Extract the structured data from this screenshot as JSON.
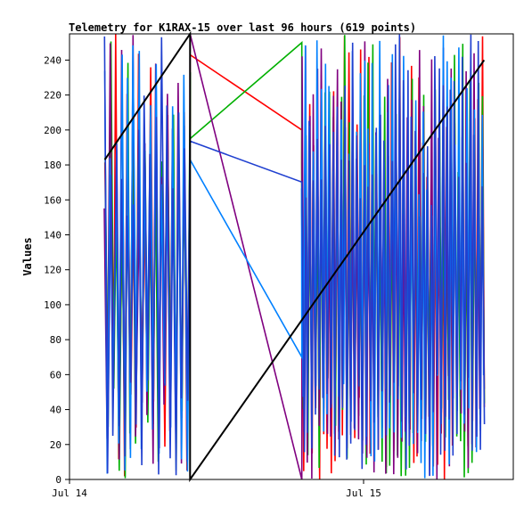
{
  "chart_data": {
    "type": "line",
    "title": "Telemetry for K1RAX-15 over last 96 hours (619 points)",
    "ylabel": "Values",
    "xlabel": "",
    "ylim": [
      0,
      255
    ],
    "yticks": [
      "0",
      "20",
      "40",
      "60",
      "80",
      "100",
      "120",
      "140",
      "160",
      "180",
      "200",
      "220",
      "240"
    ],
    "xlim_days": [
      0,
      1.5
    ],
    "xticks": [
      {
        "label": "Jul 14",
        "day": 0
      },
      {
        "label": "Jul 15",
        "day": 1
      }
    ],
    "grid": false,
    "legend": "none",
    "series": [
      {
        "color": "#ff0000",
        "style": "oscillating",
        "clusters": [
          [
            0.12,
            0.41,
            31
          ],
          [
            0.79,
            1.41,
            94
          ]
        ],
        "bridge": [
          [
            0.41,
            243
          ],
          [
            0.79,
            200
          ]
        ]
      },
      {
        "color": "#00b000",
        "style": "oscillating",
        "clusters": [
          [
            0.12,
            0.41,
            31
          ],
          [
            0.79,
            1.41,
            94
          ]
        ],
        "bridge": [
          [
            0.41,
            195
          ],
          [
            0.79,
            250
          ]
        ]
      },
      {
        "color": "#800080",
        "style": "oscillating",
        "clusters": [
          [
            0.12,
            0.41,
            31
          ],
          [
            0.79,
            1.41,
            94
          ]
        ],
        "bridge": [
          [
            0.41,
            255
          ],
          [
            0.79,
            0
          ]
        ]
      },
      {
        "color": "#0080ff",
        "style": "oscillating",
        "clusters": [
          [
            0.12,
            0.41,
            31
          ],
          [
            0.79,
            1.41,
            94
          ]
        ],
        "bridge": [
          [
            0.41,
            183
          ],
          [
            0.79,
            70
          ]
        ]
      },
      {
        "color": "#2040d0",
        "style": "oscillating",
        "clusters": [
          [
            0.12,
            0.41,
            31
          ],
          [
            0.79,
            1.41,
            94
          ]
        ],
        "bridge": []
      },
      {
        "color": "#000000",
        "style": "ramp",
        "points": [
          [
            0.12,
            183
          ],
          [
            0.41,
            255
          ],
          [
            0.41,
            0
          ],
          [
            1.41,
            240
          ]
        ]
      }
    ]
  }
}
